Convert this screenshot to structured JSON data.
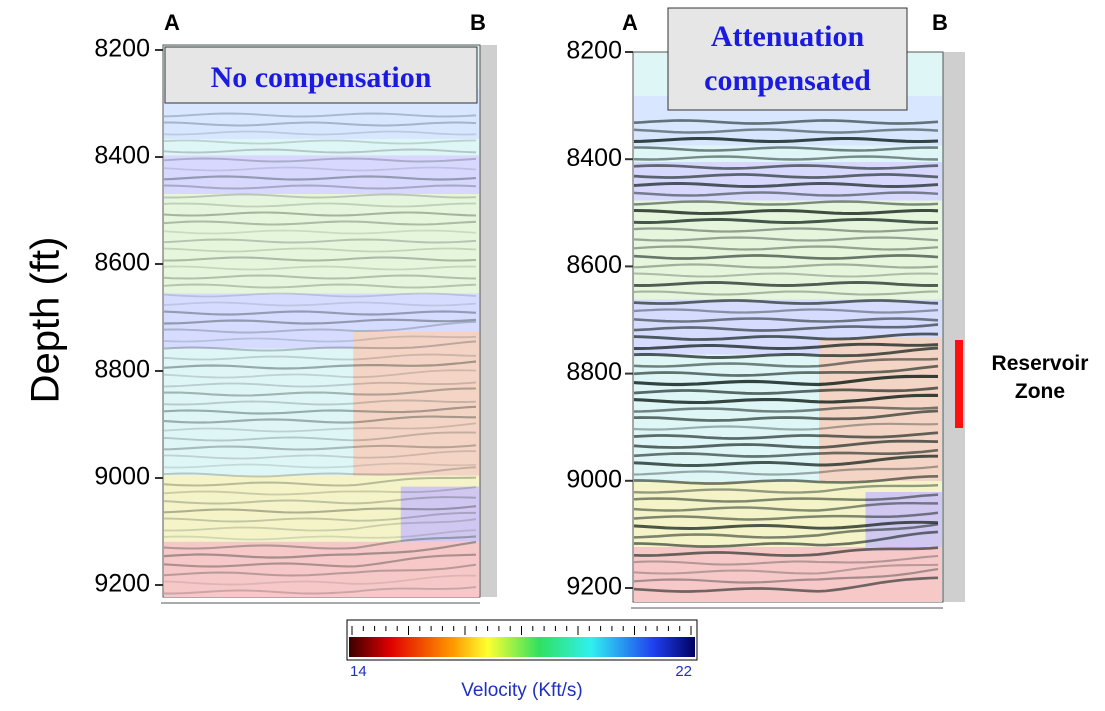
{
  "y_axis_label": "Depth (ft)",
  "panels": [
    {
      "label_left": "A",
      "label_right": "B",
      "title_lines": [
        "No compensation"
      ],
      "depth_ticks": [
        8200,
        8400,
        8600,
        8800,
        9000,
        9200
      ]
    },
    {
      "label_left": "A",
      "label_right": "B",
      "title_lines": [
        "Attenuation",
        "compensated"
      ],
      "depth_ticks": [
        8200,
        8400,
        8600,
        8800,
        9000,
        9200
      ]
    }
  ],
  "reservoir_label_lines": [
    "Reservoir",
    "Zone"
  ],
  "colorbar": {
    "min": 14,
    "max": 22,
    "title": "Velocity (Kft/s)"
  }
}
